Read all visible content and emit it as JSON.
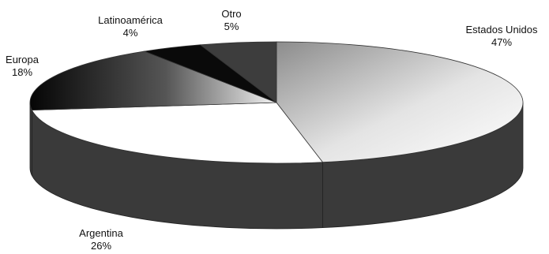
{
  "chart_data": {
    "type": "pie",
    "style": "3d-exploded-grayscale",
    "title": "",
    "slices": [
      {
        "name": "Estados Unidos",
        "label": "Estados Unidos",
        "value": 47,
        "value_label": "47%",
        "fill": "gradient-light"
      },
      {
        "name": "Argentina",
        "label": "Argentina",
        "value": 26,
        "value_label": "26%",
        "fill": "white"
      },
      {
        "name": "Europa",
        "label": "Europa",
        "value": 18,
        "value_label": "18%",
        "fill": "gradient-dark"
      },
      {
        "name": "Latinoamérica",
        "label": "Latinoamérica",
        "value": 4,
        "value_label": "4%",
        "fill": "black"
      },
      {
        "name": "Otro",
        "label": "Otro",
        "value": 5,
        "value_label": "5%",
        "fill": "dark-gray"
      }
    ],
    "legend": "none",
    "colors": {
      "side": "#3a3a3a",
      "top_outline": "#333333",
      "black": "#0a0a0a",
      "dark_gray": "#3d3d3d",
      "white": "#ffffff"
    }
  }
}
